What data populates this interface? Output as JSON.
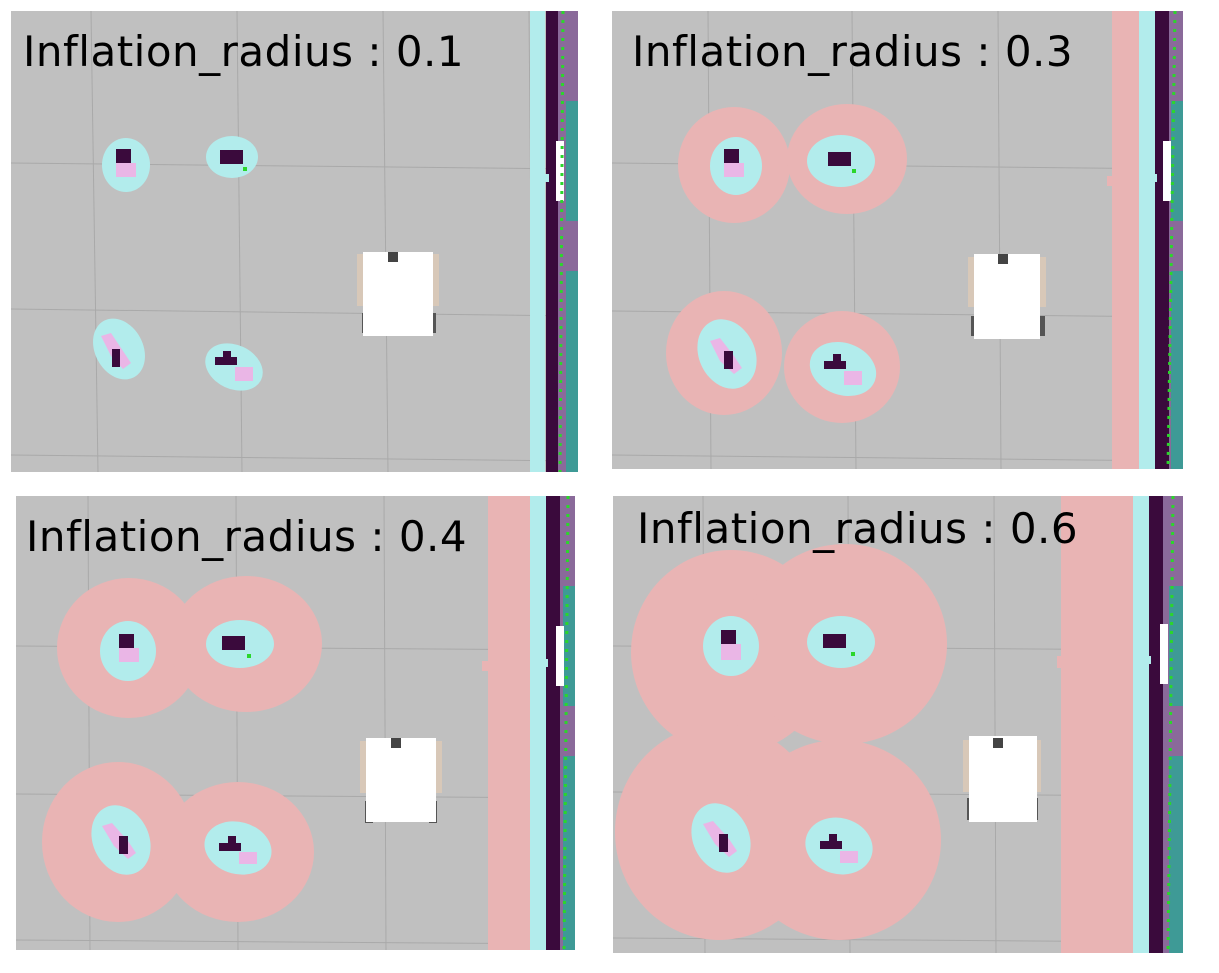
{
  "colors": {
    "grid_bg": "#c0c0c0",
    "grid_line": "#a9a9a9",
    "inflation": "#e9b4b4",
    "inscribed": "#b2ecec",
    "lethal": "#3a0a3c",
    "unknown_pink": "#eab6e6",
    "footprint": "#ffffff",
    "laser_point": "#2bd62b",
    "wall_purple": "#8a6a9a",
    "wall_teal": "#3e9a96"
  },
  "panels": [
    {
      "id": "r01",
      "label": "Inflation_radius : 0.1",
      "inflation_radius": 0.1
    },
    {
      "id": "r03",
      "label": "Inflation_radius : 0.3",
      "inflation_radius": 0.3
    },
    {
      "id": "r04",
      "label": "Inflation_radius : 0.4",
      "inflation_radius": 0.4
    },
    {
      "id": "r06",
      "label": "Inflation_radius : 0.6",
      "inflation_radius": 0.6
    }
  ]
}
